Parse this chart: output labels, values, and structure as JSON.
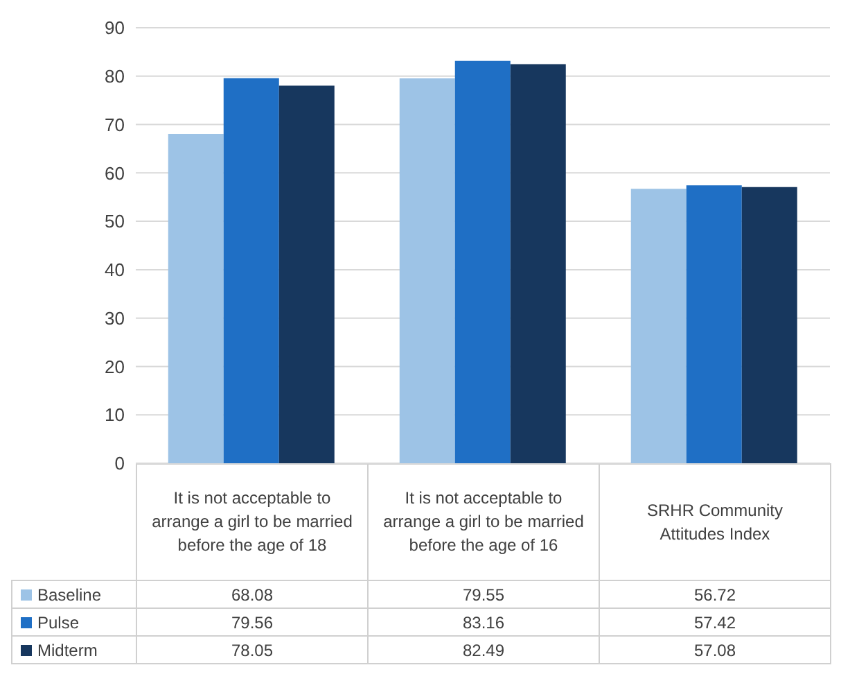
{
  "chart_data": {
    "type": "bar",
    "categories": [
      "It is not acceptable to arrange a girl to be married before the age of 18",
      "It is not acceptable to arrange a girl to be married before the age of 16",
      "SRHR Community Attitudes Index"
    ],
    "series": [
      {
        "name": "Baseline",
        "color": "#9dc3e6",
        "values": [
          68.08,
          79.55,
          56.72
        ]
      },
      {
        "name": "Pulse",
        "color": "#1f6fc5",
        "values": [
          79.56,
          83.16,
          57.42
        ]
      },
      {
        "name": "Midterm",
        "color": "#17375e",
        "values": [
          78.05,
          82.49,
          57.08
        ]
      }
    ],
    "ylim": [
      0,
      90
    ],
    "yticks": [
      0,
      10,
      20,
      30,
      40,
      50,
      60,
      70,
      80,
      90
    ],
    "grid": "y",
    "legend": "bottom",
    "data_labels": true
  }
}
